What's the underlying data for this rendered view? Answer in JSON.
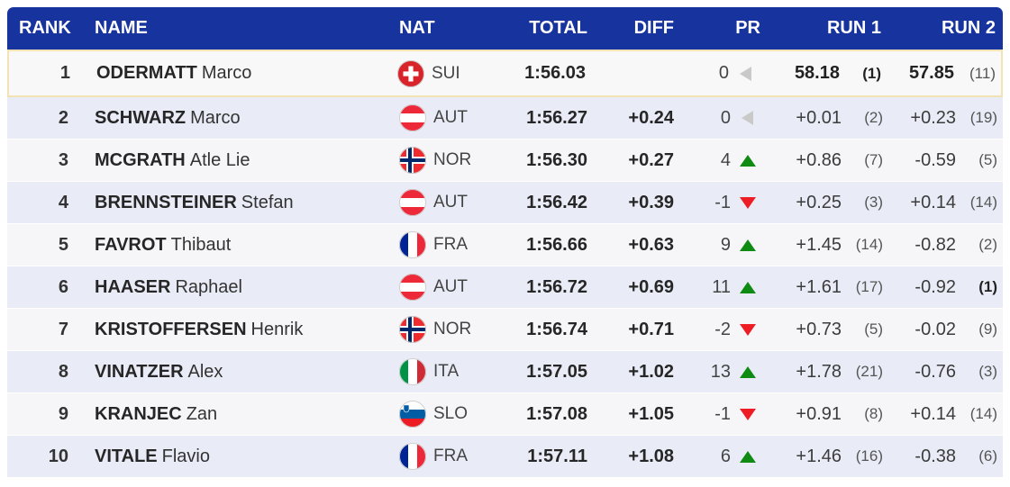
{
  "table": {
    "headers": {
      "rank": "RANK",
      "name": "NAME",
      "nat": "NAT",
      "total": "TOTAL",
      "diff": "DIFF",
      "pr": "PR",
      "run1": "RUN 1",
      "run2": "RUN 2"
    },
    "rows": [
      {
        "rank": "1",
        "last": "ODERMATT",
        "first": "Marco",
        "nat": "SUI",
        "total": "1:56.03",
        "diff": "",
        "pr": "0",
        "pr_dir": "same",
        "run1": "58.18",
        "run1_rank": "(1)",
        "run1_bold": true,
        "run1_rank_bold": true,
        "run2": "57.85",
        "run2_rank": "(11)",
        "run2_bold": true,
        "run2_rank_bold": false,
        "highlight": true
      },
      {
        "rank": "2",
        "last": "SCHWARZ",
        "first": "Marco",
        "nat": "AUT",
        "total": "1:56.27",
        "diff": "+0.24",
        "pr": "0",
        "pr_dir": "same",
        "run1": "+0.01",
        "run1_rank": "(2)",
        "run1_bold": false,
        "run1_rank_bold": false,
        "run2": "+0.23",
        "run2_rank": "(19)",
        "run2_bold": false,
        "run2_rank_bold": false,
        "highlight": false
      },
      {
        "rank": "3",
        "last": "MCGRATH",
        "first": "Atle Lie",
        "nat": "NOR",
        "total": "1:56.30",
        "diff": "+0.27",
        "pr": "4",
        "pr_dir": "up",
        "run1": "+0.86",
        "run1_rank": "(7)",
        "run1_bold": false,
        "run1_rank_bold": false,
        "run2": "-0.59",
        "run2_rank": "(5)",
        "run2_bold": false,
        "run2_rank_bold": false,
        "highlight": false
      },
      {
        "rank": "4",
        "last": "BRENNSTEINER",
        "first": "Stefan",
        "nat": "AUT",
        "total": "1:56.42",
        "diff": "+0.39",
        "pr": "-1",
        "pr_dir": "down",
        "run1": "+0.25",
        "run1_rank": "(3)",
        "run1_bold": false,
        "run1_rank_bold": false,
        "run2": "+0.14",
        "run2_rank": "(14)",
        "run2_bold": false,
        "run2_rank_bold": false,
        "highlight": false
      },
      {
        "rank": "5",
        "last": "FAVROT",
        "first": "Thibaut",
        "nat": "FRA",
        "total": "1:56.66",
        "diff": "+0.63",
        "pr": "9",
        "pr_dir": "up",
        "run1": "+1.45",
        "run1_rank": "(14)",
        "run1_bold": false,
        "run1_rank_bold": false,
        "run2": "-0.82",
        "run2_rank": "(2)",
        "run2_bold": false,
        "run2_rank_bold": false,
        "highlight": false
      },
      {
        "rank": "6",
        "last": "HAASER",
        "first": "Raphael",
        "nat": "AUT",
        "total": "1:56.72",
        "diff": "+0.69",
        "pr": "11",
        "pr_dir": "up",
        "run1": "+1.61",
        "run1_rank": "(17)",
        "run1_bold": false,
        "run1_rank_bold": false,
        "run2": "-0.92",
        "run2_rank": "(1)",
        "run2_bold": false,
        "run2_rank_bold": true,
        "highlight": false
      },
      {
        "rank": "7",
        "last": "KRISTOFFERSEN",
        "first": "Henrik",
        "nat": "NOR",
        "total": "1:56.74",
        "diff": "+0.71",
        "pr": "-2",
        "pr_dir": "down",
        "run1": "+0.73",
        "run1_rank": "(5)",
        "run1_bold": false,
        "run1_rank_bold": false,
        "run2": "-0.02",
        "run2_rank": "(9)",
        "run2_bold": false,
        "run2_rank_bold": false,
        "highlight": false
      },
      {
        "rank": "8",
        "last": "VINATZER",
        "first": "Alex",
        "nat": "ITA",
        "total": "1:57.05",
        "diff": "+1.02",
        "pr": "13",
        "pr_dir": "up",
        "run1": "+1.78",
        "run1_rank": "(21)",
        "run1_bold": false,
        "run1_rank_bold": false,
        "run2": "-0.76",
        "run2_rank": "(3)",
        "run2_bold": false,
        "run2_rank_bold": false,
        "highlight": false
      },
      {
        "rank": "9",
        "last": "KRANJEC",
        "first": "Zan",
        "nat": "SLO",
        "total": "1:57.08",
        "diff": "+1.05",
        "pr": "-1",
        "pr_dir": "down",
        "run1": "+0.91",
        "run1_rank": "(8)",
        "run1_bold": false,
        "run1_rank_bold": false,
        "run2": "+0.14",
        "run2_rank": "(14)",
        "run2_bold": false,
        "run2_rank_bold": false,
        "highlight": false
      },
      {
        "rank": "10",
        "last": "VITALE",
        "first": "Flavio",
        "nat": "FRA",
        "total": "1:57.11",
        "diff": "+1.08",
        "pr": "6",
        "pr_dir": "up",
        "run1": "+1.46",
        "run1_rank": "(16)",
        "run1_bold": false,
        "run1_rank_bold": false,
        "run2": "-0.38",
        "run2_rank": "(6)",
        "run2_bold": false,
        "run2_rank_bold": false,
        "highlight": false
      }
    ]
  },
  "colors": {
    "header_bg": "#16339e",
    "header_text": "#ffffff",
    "row_light": "#f6f6f9",
    "row_alt": "#e9ecf7",
    "highlight_bg": "#f8f8f8",
    "highlight_border": "#f2e2b4",
    "position_up": "#0f8a12",
    "position_down": "#ee1c25",
    "position_same": "#c9c9c9"
  },
  "icons": {
    "up": "triangle-up-icon",
    "down": "triangle-down-icon",
    "same": "triangle-left-icon",
    "flags": [
      "flag-sui-icon",
      "flag-aut-icon",
      "flag-nor-icon",
      "flag-fra-icon",
      "flag-ita-icon",
      "flag-slo-icon"
    ]
  }
}
